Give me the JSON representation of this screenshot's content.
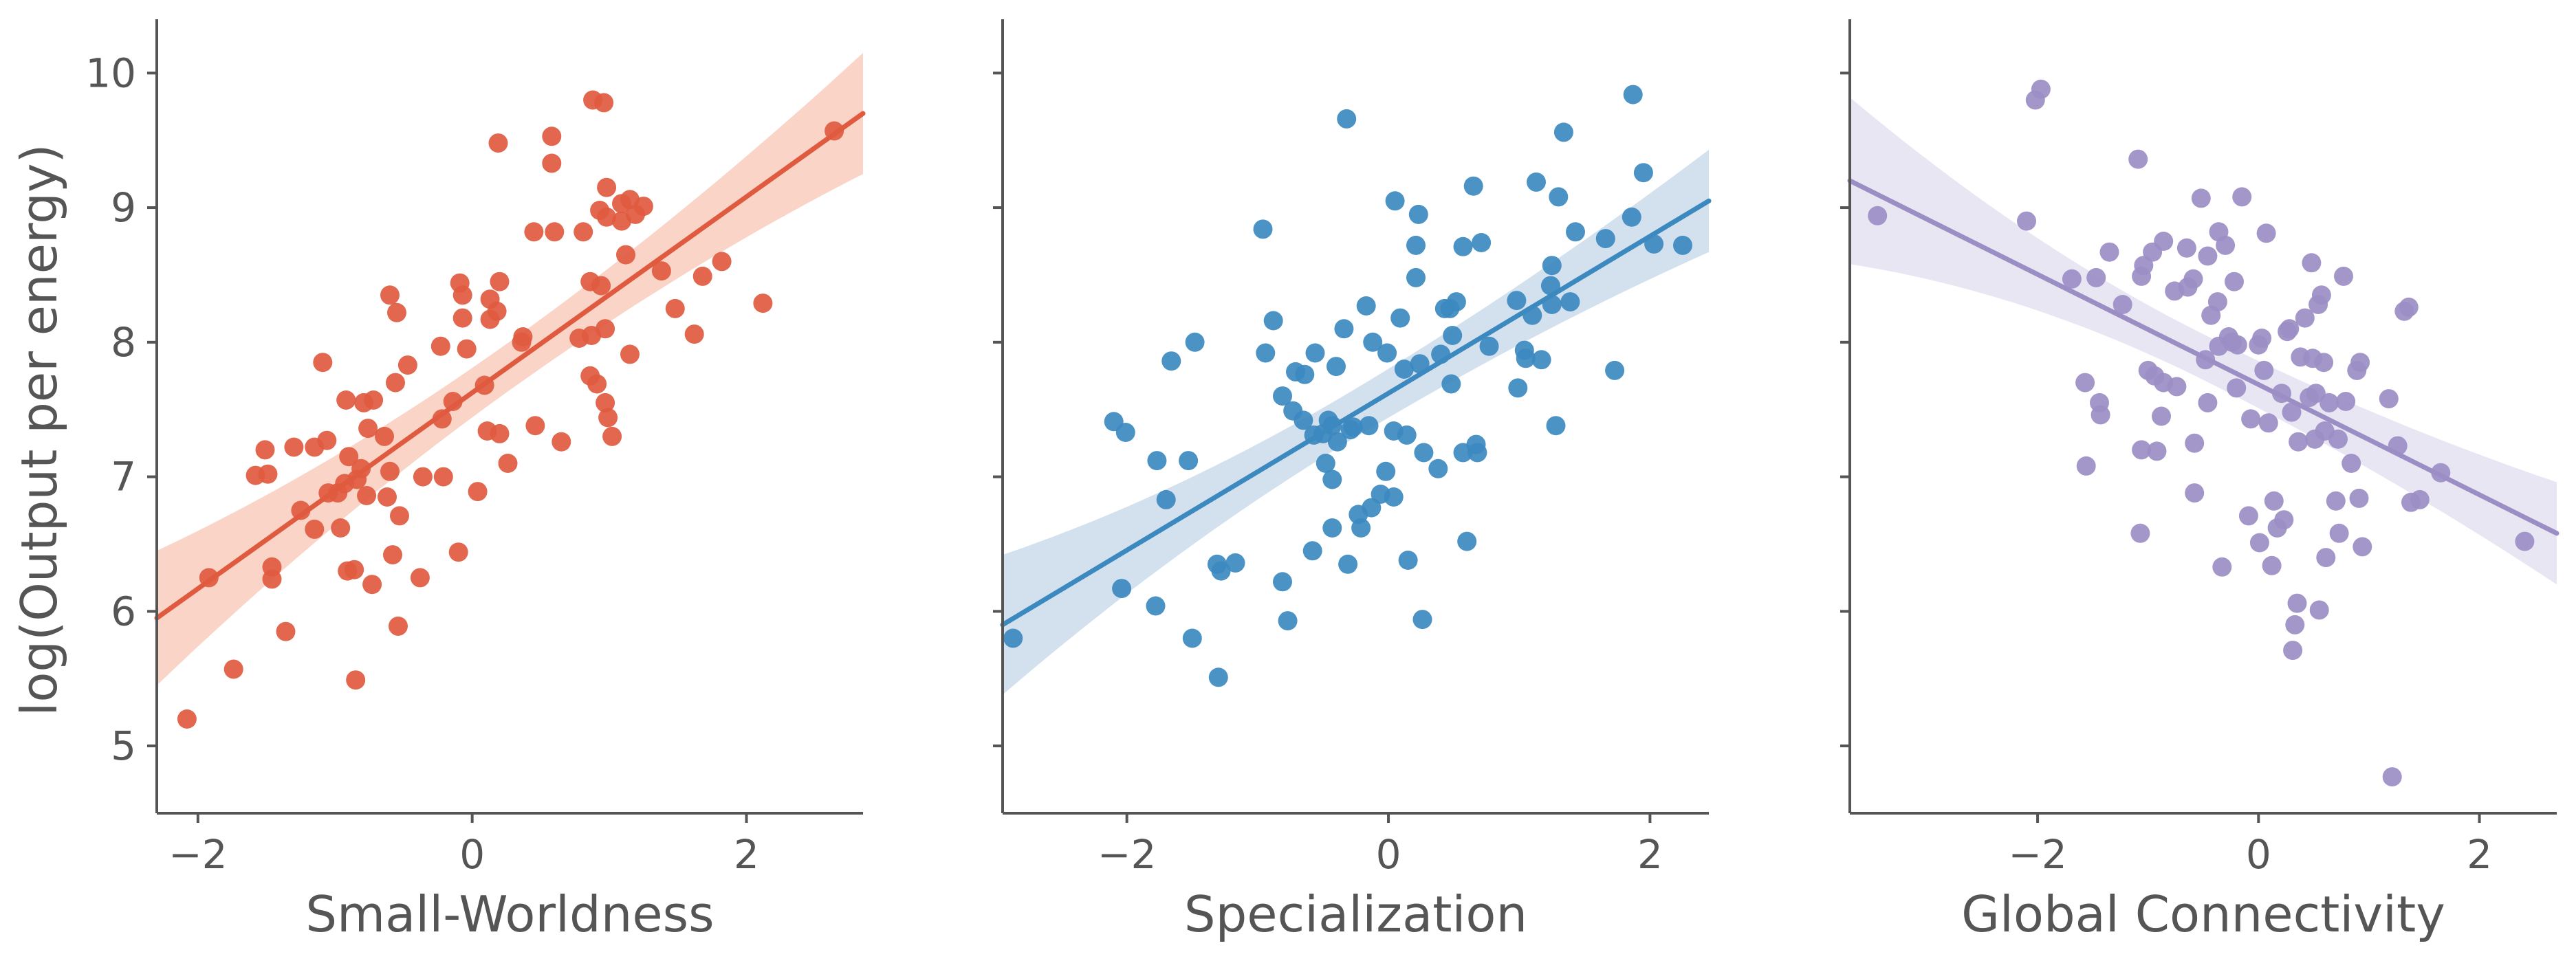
{
  "chart_data": [
    {
      "type": "scatter",
      "xlabel": "Small-Worldness",
      "ylabel": "log(Output per energy)",
      "xlim": [
        -2.3,
        2.85
      ],
      "ylim": [
        4.5,
        10.4
      ],
      "xticks": [
        -2,
        0,
        2
      ],
      "xtick_labels": [
        "−2",
        "0",
        "2"
      ],
      "yticks": [
        5,
        6,
        7,
        8,
        9,
        10
      ],
      "ytick_labels": [
        "5",
        "6",
        "7",
        "8",
        "9",
        "10"
      ],
      "color": "#E05A3F",
      "band_color": "#F7C6B4",
      "regression": {
        "x_start": -2.3,
        "y_start": 5.95,
        "x_end": 2.85,
        "y_end": 9.7,
        "ci_start": 0.5,
        "ci_mid": 0.18,
        "ci_end": 0.45
      },
      "points": [
        [
          -2.08,
          5.2
        ],
        [
          -1.92,
          6.25
        ],
        [
          -1.74,
          5.57
        ],
        [
          -1.58,
          7.01
        ],
        [
          -1.51,
          7.2
        ],
        [
          -1.49,
          7.02
        ],
        [
          -1.46,
          6.33
        ],
        [
          -1.46,
          6.24
        ],
        [
          -1.36,
          5.85
        ],
        [
          -1.3,
          7.22
        ],
        [
          -1.25,
          6.75
        ],
        [
          -1.15,
          7.22
        ],
        [
          -1.15,
          6.61
        ],
        [
          -1.09,
          7.85
        ],
        [
          -1.06,
          7.27
        ],
        [
          -1.05,
          6.88
        ],
        [
          -0.98,
          6.88
        ],
        [
          -0.96,
          6.62
        ],
        [
          -0.93,
          6.95
        ],
        [
          -0.92,
          7.57
        ],
        [
          -0.91,
          6.3
        ],
        [
          -0.9,
          7.15
        ],
        [
          -0.86,
          6.31
        ],
        [
          -0.85,
          5.49
        ],
        [
          -0.84,
          6.98
        ],
        [
          -0.81,
          7.06
        ],
        [
          -0.79,
          7.55
        ],
        [
          -0.77,
          6.86
        ],
        [
          -0.76,
          7.36
        ],
        [
          -0.73,
          6.2
        ],
        [
          -0.72,
          7.57
        ],
        [
          -0.64,
          7.3
        ],
        [
          -0.62,
          6.85
        ],
        [
          -0.6,
          8.35
        ],
        [
          -0.6,
          7.04
        ],
        [
          -0.58,
          6.42
        ],
        [
          -0.56,
          7.7
        ],
        [
          -0.55,
          8.22
        ],
        [
          -0.53,
          6.71
        ],
        [
          -0.54,
          5.89
        ],
        [
          -0.47,
          7.83
        ],
        [
          -0.38,
          6.25
        ],
        [
          -0.36,
          7.0
        ],
        [
          -0.23,
          7.97
        ],
        [
          -0.22,
          7.43
        ],
        [
          -0.21,
          7.0
        ],
        [
          -0.14,
          7.56
        ],
        [
          -0.1,
          6.44
        ],
        [
          -0.09,
          8.44
        ],
        [
          -0.07,
          8.35
        ],
        [
          -0.07,
          8.18
        ],
        [
          -0.04,
          7.95
        ],
        [
          0.04,
          6.89
        ],
        [
          0.09,
          7.68
        ],
        [
          0.11,
          7.34
        ],
        [
          0.13,
          8.32
        ],
        [
          0.13,
          8.17
        ],
        [
          0.18,
          8.23
        ],
        [
          0.19,
          9.48
        ],
        [
          0.2,
          8.45
        ],
        [
          0.2,
          7.32
        ],
        [
          0.26,
          7.1
        ],
        [
          0.36,
          8.0
        ],
        [
          0.37,
          8.04
        ],
        [
          0.45,
          8.82
        ],
        [
          0.46,
          7.38
        ],
        [
          0.58,
          9.53
        ],
        [
          0.58,
          9.33
        ],
        [
          0.6,
          8.82
        ],
        [
          0.65,
          7.26
        ],
        [
          0.78,
          8.03
        ],
        [
          0.81,
          8.82
        ],
        [
          0.86,
          7.75
        ],
        [
          0.86,
          8.45
        ],
        [
          0.87,
          8.05
        ],
        [
          0.88,
          9.8
        ],
        [
          0.91,
          7.69
        ],
        [
          0.93,
          8.98
        ],
        [
          0.94,
          8.42
        ],
        [
          0.96,
          9.78
        ],
        [
          0.97,
          7.55
        ],
        [
          0.97,
          8.1
        ],
        [
          0.98,
          9.15
        ],
        [
          0.98,
          8.93
        ],
        [
          0.99,
          7.44
        ],
        [
          1.02,
          7.3
        ],
        [
          1.09,
          9.03
        ],
        [
          1.09,
          8.9
        ],
        [
          1.12,
          8.65
        ],
        [
          1.15,
          7.91
        ],
        [
          1.15,
          9.06
        ],
        [
          1.19,
          8.95
        ],
        [
          1.25,
          9.01
        ],
        [
          1.38,
          8.53
        ],
        [
          1.48,
          8.25
        ],
        [
          1.62,
          8.06
        ],
        [
          1.68,
          8.49
        ],
        [
          1.82,
          8.6
        ],
        [
          2.12,
          8.29
        ],
        [
          2.64,
          9.57
        ]
      ]
    },
    {
      "type": "scatter",
      "xlabel": "Specialization",
      "xlim": [
        -2.95,
        2.45
      ],
      "ylim": [
        4.5,
        10.4
      ],
      "xticks": [
        -2,
        0,
        2
      ],
      "xtick_labels": [
        "−2",
        "0",
        "2"
      ],
      "yticks": [
        5,
        6,
        7,
        8,
        9,
        10
      ],
      "color": "#3C89C0",
      "band_color": "#C4D7EA",
      "regression": {
        "x_start": -2.95,
        "y_start": 5.9,
        "x_end": 2.45,
        "y_end": 9.05,
        "ci_start": 0.52,
        "ci_mid": 0.18,
        "ci_end": 0.38
      },
      "points": [
        [
          -2.87,
          5.8
        ],
        [
          -2.1,
          7.41
        ],
        [
          -2.04,
          6.17
        ],
        [
          -2.01,
          7.33
        ],
        [
          -1.78,
          6.04
        ],
        [
          -1.77,
          7.12
        ],
        [
          -1.7,
          6.83
        ],
        [
          -1.66,
          7.86
        ],
        [
          -1.53,
          7.12
        ],
        [
          -1.5,
          5.8
        ],
        [
          -1.48,
          8.0
        ],
        [
          -1.31,
          6.35
        ],
        [
          -1.3,
          5.51
        ],
        [
          -1.28,
          6.3
        ],
        [
          -1.17,
          6.36
        ],
        [
          -0.96,
          8.84
        ],
        [
          -0.94,
          7.92
        ],
        [
          -0.88,
          8.16
        ],
        [
          -0.81,
          6.22
        ],
        [
          -0.81,
          7.6
        ],
        [
          -0.77,
          5.93
        ],
        [
          -0.73,
          7.49
        ],
        [
          -0.71,
          7.78
        ],
        [
          -0.65,
          7.42
        ],
        [
          -0.64,
          7.76
        ],
        [
          -0.58,
          6.45
        ],
        [
          -0.57,
          7.31
        ],
        [
          -0.56,
          7.92
        ],
        [
          -0.5,
          7.32
        ],
        [
          -0.48,
          7.1
        ],
        [
          -0.46,
          7.42
        ],
        [
          -0.43,
          6.98
        ],
        [
          -0.43,
          7.38
        ],
        [
          -0.43,
          6.62
        ],
        [
          -0.4,
          7.82
        ],
        [
          -0.39,
          7.26
        ],
        [
          -0.34,
          8.1
        ],
        [
          -0.32,
          9.66
        ],
        [
          -0.31,
          6.35
        ],
        [
          -0.29,
          7.35
        ],
        [
          -0.27,
          7.37
        ],
        [
          -0.23,
          6.72
        ],
        [
          -0.21,
          6.62
        ],
        [
          -0.17,
          8.27
        ],
        [
          -0.15,
          7.38
        ],
        [
          -0.13,
          6.77
        ],
        [
          -0.12,
          8.0
        ],
        [
          -0.06,
          6.87
        ],
        [
          -0.02,
          7.04
        ],
        [
          -0.01,
          7.92
        ],
        [
          0.04,
          6.85
        ],
        [
          0.04,
          7.34
        ],
        [
          0.05,
          9.05
        ],
        [
          0.09,
          8.18
        ],
        [
          0.12,
          7.8
        ],
        [
          0.14,
          7.31
        ],
        [
          0.15,
          6.38
        ],
        [
          0.21,
          8.72
        ],
        [
          0.21,
          8.48
        ],
        [
          0.23,
          8.95
        ],
        [
          0.24,
          7.84
        ],
        [
          0.26,
          5.94
        ],
        [
          0.27,
          7.18
        ],
        [
          0.38,
          7.06
        ],
        [
          0.4,
          7.91
        ],
        [
          0.43,
          8.25
        ],
        [
          0.47,
          8.25
        ],
        [
          0.48,
          7.69
        ],
        [
          0.49,
          8.05
        ],
        [
          0.52,
          8.3
        ],
        [
          0.57,
          8.71
        ],
        [
          0.57,
          7.18
        ],
        [
          0.6,
          6.52
        ],
        [
          0.65,
          9.16
        ],
        [
          0.67,
          7.24
        ],
        [
          0.68,
          7.18
        ],
        [
          0.71,
          8.74
        ],
        [
          0.77,
          7.97
        ],
        [
          0.98,
          8.31
        ],
        [
          0.99,
          7.66
        ],
        [
          1.04,
          7.94
        ],
        [
          1.05,
          7.88
        ],
        [
          1.1,
          8.2
        ],
        [
          1.13,
          9.19
        ],
        [
          1.17,
          7.87
        ],
        [
          1.24,
          8.42
        ],
        [
          1.25,
          8.57
        ],
        [
          1.25,
          8.28
        ],
        [
          1.28,
          7.38
        ],
        [
          1.3,
          9.08
        ],
        [
          1.34,
          9.56
        ],
        [
          1.39,
          8.3
        ],
        [
          1.43,
          8.82
        ],
        [
          1.66,
          8.77
        ],
        [
          1.73,
          7.79
        ],
        [
          1.86,
          8.93
        ],
        [
          1.87,
          9.84
        ],
        [
          1.95,
          9.26
        ],
        [
          2.03,
          8.73
        ],
        [
          2.25,
          8.72
        ]
      ]
    },
    {
      "type": "scatter",
      "xlabel": "Global Connectivity",
      "xlim": [
        -3.7,
        2.7
      ],
      "ylim": [
        4.5,
        10.4
      ],
      "xticks": [
        -2,
        0,
        2
      ],
      "xtick_labels": [
        "−2",
        "0",
        "2"
      ],
      "yticks": [
        5,
        6,
        7,
        8,
        9,
        10
      ],
      "color": "#9B8EC4",
      "band_color": "#E2DEF0",
      "regression": {
        "x_start": -3.7,
        "y_start": 9.2,
        "x_end": 2.7,
        "y_end": 6.58,
        "ci_start": 0.62,
        "ci_mid": 0.17,
        "ci_end": 0.38
      },
      "points": [
        [
          -3.45,
          8.94
        ],
        [
          -2.1,
          8.9
        ],
        [
          -2.02,
          9.8
        ],
        [
          -1.97,
          9.88
        ],
        [
          -1.69,
          8.47
        ],
        [
          -1.56,
          7.08
        ],
        [
          -1.57,
          7.7
        ],
        [
          -1.47,
          8.48
        ],
        [
          -1.44,
          7.55
        ],
        [
          -1.43,
          7.46
        ],
        [
          -1.35,
          8.67
        ],
        [
          -1.23,
          8.28
        ],
        [
          -1.09,
          9.36
        ],
        [
          -1.07,
          6.58
        ],
        [
          -1.06,
          8.49
        ],
        [
          -1.06,
          7.2
        ],
        [
          -1.04,
          8.57
        ],
        [
          -1.0,
          7.79
        ],
        [
          -0.96,
          8.67
        ],
        [
          -0.94,
          7.75
        ],
        [
          -0.92,
          7.19
        ],
        [
          -0.88,
          7.45
        ],
        [
          -0.86,
          8.75
        ],
        [
          -0.86,
          7.7
        ],
        [
          -0.76,
          8.38
        ],
        [
          -0.74,
          7.67
        ],
        [
          -0.65,
          8.7
        ],
        [
          -0.64,
          8.41
        ],
        [
          -0.59,
          8.47
        ],
        [
          -0.58,
          6.88
        ],
        [
          -0.58,
          7.25
        ],
        [
          -0.52,
          9.07
        ],
        [
          -0.48,
          7.87
        ],
        [
          -0.46,
          7.55
        ],
        [
          -0.46,
          8.64
        ],
        [
          -0.43,
          8.2
        ],
        [
          -0.37,
          8.3
        ],
        [
          -0.36,
          7.97
        ],
        [
          -0.36,
          8.82
        ],
        [
          -0.33,
          6.33
        ],
        [
          -0.3,
          8.72
        ],
        [
          -0.27,
          8.04
        ],
        [
          -0.24,
          8.0
        ],
        [
          -0.22,
          8.45
        ],
        [
          -0.2,
          7.66
        ],
        [
          -0.19,
          7.98
        ],
        [
          -0.15,
          9.08
        ],
        [
          -0.09,
          6.71
        ],
        [
          -0.07,
          7.43
        ],
        [
          0.0,
          7.98
        ],
        [
          0.01,
          6.51
        ],
        [
          0.03,
          8.03
        ],
        [
          0.05,
          7.79
        ],
        [
          0.07,
          8.81
        ],
        [
          0.09,
          7.4
        ],
        [
          0.12,
          6.34
        ],
        [
          0.14,
          6.82
        ],
        [
          0.17,
          6.62
        ],
        [
          0.21,
          7.62
        ],
        [
          0.23,
          6.68
        ],
        [
          0.26,
          8.08
        ],
        [
          0.28,
          8.1
        ],
        [
          0.3,
          7.48
        ],
        [
          0.31,
          5.71
        ],
        [
          0.33,
          5.9
        ],
        [
          0.35,
          6.06
        ],
        [
          0.36,
          7.26
        ],
        [
          0.38,
          7.89
        ],
        [
          0.42,
          8.18
        ],
        [
          0.46,
          7.59
        ],
        [
          0.48,
          8.59
        ],
        [
          0.49,
          7.88
        ],
        [
          0.51,
          7.28
        ],
        [
          0.52,
          7.62
        ],
        [
          0.54,
          8.28
        ],
        [
          0.55,
          6.01
        ],
        [
          0.57,
          8.35
        ],
        [
          0.59,
          7.85
        ],
        [
          0.6,
          7.34
        ],
        [
          0.61,
          6.4
        ],
        [
          0.64,
          7.55
        ],
        [
          0.7,
          6.82
        ],
        [
          0.72,
          7.28
        ],
        [
          0.73,
          6.58
        ],
        [
          0.77,
          8.49
        ],
        [
          0.79,
          7.56
        ],
        [
          0.84,
          7.1
        ],
        [
          0.89,
          7.79
        ],
        [
          0.91,
          6.84
        ],
        [
          0.92,
          7.85
        ],
        [
          0.94,
          6.48
        ],
        [
          1.18,
          7.58
        ],
        [
          1.21,
          4.77
        ],
        [
          1.26,
          7.23
        ],
        [
          1.32,
          8.23
        ],
        [
          1.36,
          8.26
        ],
        [
          1.38,
          6.81
        ],
        [
          1.46,
          6.83
        ],
        [
          1.65,
          7.03
        ],
        [
          2.41,
          6.52
        ]
      ]
    }
  ]
}
